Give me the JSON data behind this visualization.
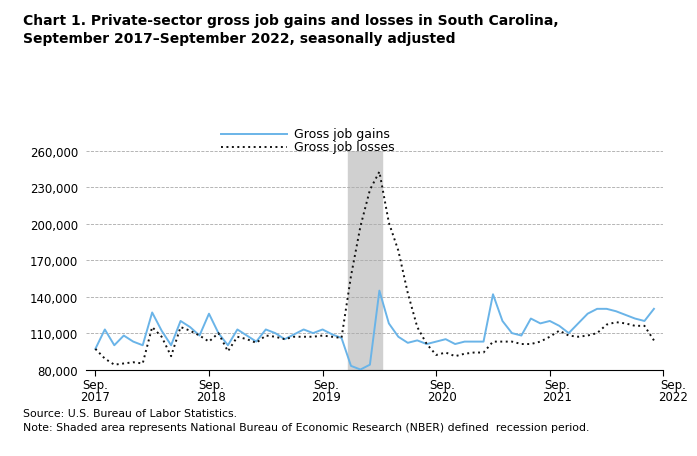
{
  "title_line1": "Chart 1. Private-sector gross job gains and losses in South Carolina,",
  "title_line2": "September 2017–September 2022, seasonally adjusted",
  "source_text": "Source: U.S. Bureau of Labor Statistics.",
  "note_text": "Note: Shaded area represents National Bureau of Economic Research (NBER) defined  recession period.",
  "legend_gains": "Gross job gains",
  "legend_losses": "Gross job losses",
  "gains_color": "#6ab4e8",
  "losses_color": "#111111",
  "shade_color": "#d0d0d0",
  "recession_start": 27,
  "recession_end": 30,
  "ylim_min": 80000,
  "ylim_max": 260000,
  "yticks": [
    80000,
    110000,
    140000,
    170000,
    200000,
    230000,
    260000
  ],
  "xtick_positions": [
    0,
    12,
    24,
    36,
    48,
    60
  ],
  "xtick_labels_line1": [
    "Sep.",
    "Sep.",
    "Sep.",
    "Sep.",
    "Sep.",
    "Sep."
  ],
  "xtick_labels_line2": [
    "2017",
    "2018",
    "2019",
    "2020",
    "2021",
    "2022"
  ],
  "gross_job_gains": [
    97000,
    113000,
    100000,
    108000,
    103000,
    100000,
    127000,
    112000,
    100000,
    120000,
    115000,
    108000,
    126000,
    110000,
    100000,
    113000,
    108000,
    103000,
    113000,
    110000,
    105000,
    109000,
    113000,
    110000,
    113000,
    109000,
    106000,
    83000,
    80000,
    84000,
    145000,
    118000,
    107000,
    102000,
    104000,
    101000,
    103000,
    105000,
    101000,
    103000,
    103000,
    103000,
    142000,
    120000,
    110000,
    108000,
    122000,
    118000,
    120000,
    116000,
    110000,
    118000,
    126000,
    130000,
    130000,
    128000,
    125000,
    122000,
    120000,
    130000
  ],
  "gross_job_losses": [
    97000,
    89000,
    84000,
    85000,
    86000,
    85000,
    115000,
    107000,
    91000,
    115000,
    112000,
    108000,
    103000,
    110000,
    95000,
    107000,
    105000,
    102000,
    108000,
    107000,
    105000,
    107000,
    107000,
    107000,
    108000,
    107000,
    106000,
    157000,
    198000,
    228000,
    243000,
    201000,
    178000,
    143000,
    115000,
    101000,
    92000,
    94000,
    91000,
    93000,
    94000,
    94000,
    103000,
    103000,
    103000,
    101000,
    101000,
    103000,
    107000,
    112000,
    108000,
    107000,
    108000,
    110000,
    117000,
    119000,
    118000,
    116000,
    116000,
    104000
  ]
}
